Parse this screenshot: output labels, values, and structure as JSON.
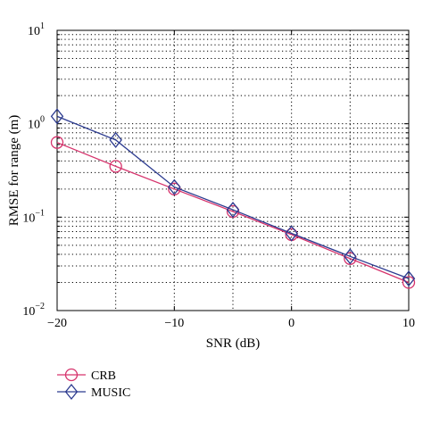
{
  "chart_data": {
    "type": "line",
    "xlabel": "SNR (dB)",
    "ylabel": "RMSE for range (m)",
    "xlim": [
      -20,
      10
    ],
    "ylim": [
      0.01,
      10
    ],
    "yscale": "log",
    "grid": true,
    "legend_position": "bottom-left",
    "x": [
      -20,
      -15,
      -10,
      -5,
      0,
      5,
      10
    ],
    "x_ticks": [
      {
        "value": -20,
        "label": "−20"
      },
      {
        "value": -10,
        "label": "−10"
      },
      {
        "value": 0,
        "label": "0"
      },
      {
        "value": 10,
        "label": "10"
      }
    ],
    "y_ticks": [
      {
        "value": 10,
        "base": "10",
        "exp": "1"
      },
      {
        "value": 1,
        "base": "10",
        "exp": "0"
      },
      {
        "value": 0.1,
        "base": "10",
        "exp": "−1"
      },
      {
        "value": 0.01,
        "base": "10",
        "exp": "−2"
      }
    ],
    "series": [
      {
        "name": "CRB",
        "color": "#d6336c",
        "marker": "circle",
        "values": [
          0.63,
          0.35,
          0.2,
          0.115,
          0.065,
          0.036,
          0.02
        ]
      },
      {
        "name": "MUSIC",
        "color": "#2b3a8f",
        "marker": "diamond",
        "values": [
          1.2,
          0.67,
          0.21,
          0.12,
          0.067,
          0.038,
          0.022
        ]
      }
    ]
  }
}
